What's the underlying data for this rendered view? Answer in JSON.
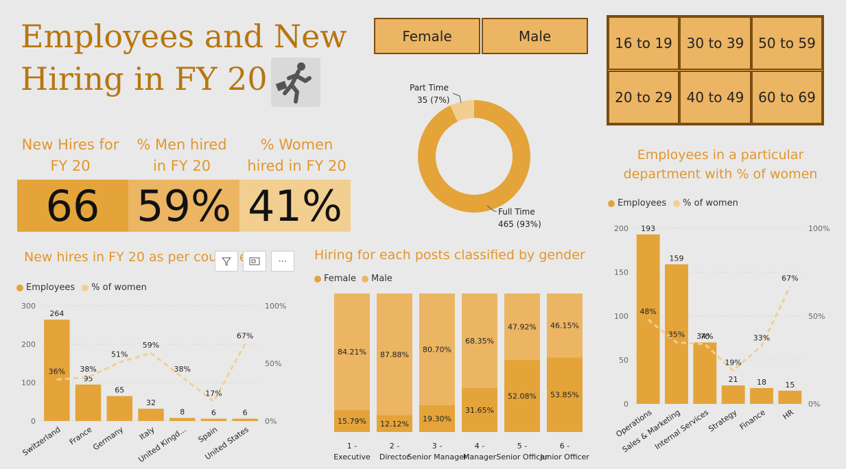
{
  "title": {
    "line1": "Employees and New",
    "line2": "Hiring in FY 20"
  },
  "gender_slicer": [
    "Female",
    "Male"
  ],
  "age_slicer": [
    "16 to 19",
    "30 to 39",
    "50 to 59",
    "20 to 29",
    "40 to 49",
    "60 to 69"
  ],
  "kpis": [
    {
      "label": "New Hires for FY 20",
      "value": "66"
    },
    {
      "label": "% Men hired in FY 20",
      "value": "59%"
    },
    {
      "label": "% Women hired in FY 20",
      "value": "41%"
    }
  ],
  "section_titles": {
    "countries": "New hires in FY 20 as per countries",
    "posts": "Hiring for each posts classified by gender",
    "departments": "Employees in a particular department with % of women"
  },
  "legends": {
    "employees": "Employees",
    "pct_women": "% of women",
    "female": "Female",
    "male": "Male"
  },
  "colors": {
    "dark": "#e4a43a",
    "light": "#f2cf91",
    "mid": "#ecb563",
    "title": "#b7760f",
    "accent": "#e2962b"
  },
  "chart_data": [
    {
      "type": "pie",
      "title": "",
      "categories": [
        "Full Time",
        "Part Time"
      ],
      "values": [
        465,
        35
      ],
      "data_labels": [
        "465 (93%)",
        "35 (7%)"
      ]
    },
    {
      "type": "bar",
      "title": "New hires in FY 20 as per countries",
      "categories": [
        "Switzerland",
        "France",
        "Germany",
        "Italy",
        "United Kingd...",
        "Spain",
        "United States"
      ],
      "series": [
        {
          "name": "Employees",
          "values": [
            264,
            95,
            65,
            32,
            8,
            6,
            6
          ]
        },
        {
          "name": "% of women",
          "values": [
            36,
            38,
            51,
            59,
            38,
            17,
            67
          ],
          "chart": "line"
        }
      ],
      "ylim": [
        0,
        300
      ],
      "y_ticks": [
        "0",
        "100",
        "200",
        "300"
      ],
      "y2_ticks": [
        "0%",
        "50%",
        "100%"
      ],
      "legend": "top-left"
    },
    {
      "type": "bar",
      "stacked_100": true,
      "title": "Hiring for each posts classified by gender",
      "categories": [
        "1 - Executive",
        "2 - Director",
        "3 - Senior Manager",
        "4 - Manager",
        "5 - Senior Officer",
        "6 - Junior Officer"
      ],
      "series": [
        {
          "name": "Female",
          "values": [
            15.79,
            12.12,
            19.3,
            31.65,
            52.08,
            53.85
          ]
        },
        {
          "name": "Male",
          "values": [
            84.21,
            87.88,
            80.7,
            68.35,
            47.92,
            46.15
          ]
        }
      ],
      "legend": "top-left"
    },
    {
      "type": "bar",
      "title": "Employees in a particular department with % of women",
      "categories": [
        "Operations",
        "Sales & Marketing",
        "Internal Services",
        "Strategy",
        "Finance",
        "HR"
      ],
      "series": [
        {
          "name": "Employees",
          "values": [
            193,
            159,
            70,
            21,
            18,
            15
          ]
        },
        {
          "name": "% of women",
          "values": [
            48,
            35,
            34,
            19,
            33,
            67
          ],
          "chart": "line"
        }
      ],
      "ylim": [
        0,
        200
      ],
      "y_ticks": [
        "0",
        "50",
        "100",
        "150",
        "200"
      ],
      "y2_ticks": [
        "0%",
        "50%",
        "100%"
      ],
      "legend": "top-left"
    }
  ]
}
